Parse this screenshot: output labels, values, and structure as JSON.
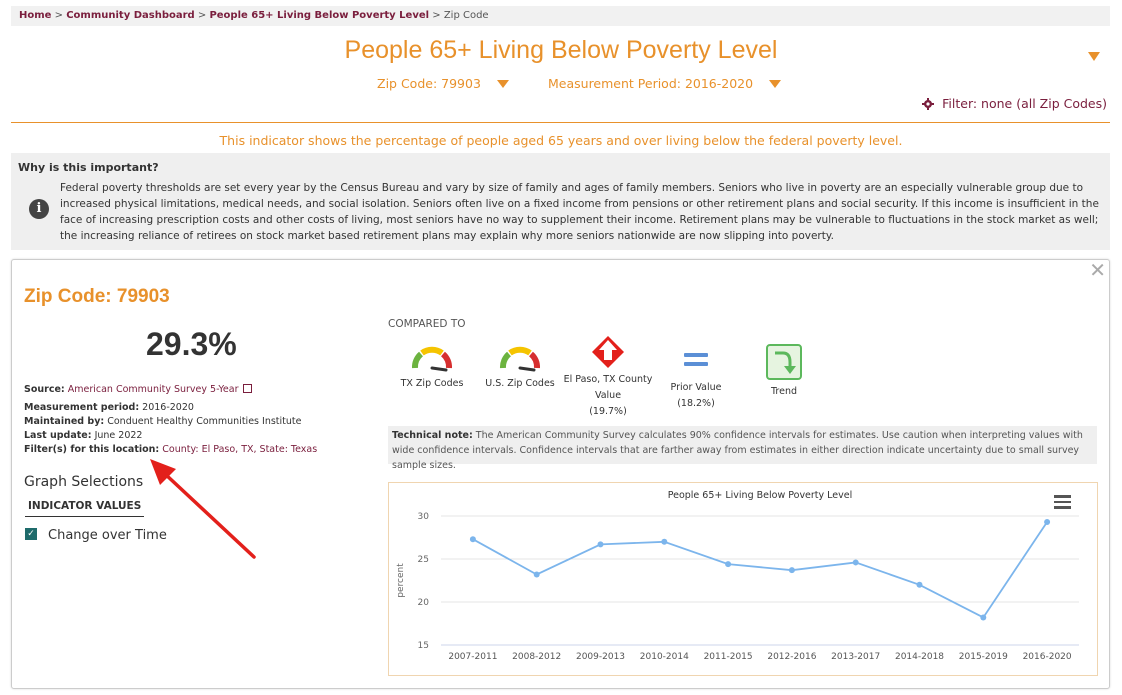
{
  "breadcrumb": {
    "home": "Home",
    "sep1": " > ",
    "dashboard": "Community Dashboard",
    "sep2": " > ",
    "indicator": "People 65+ Living Below Poverty Level",
    "sep3": " > ",
    "current": "Zip Code"
  },
  "header": {
    "title": "People 65+ Living Below Poverty Level",
    "zip_selector": "Zip Code: 79903",
    "period_selector": "Measurement Period: 2016-2020",
    "filter": "Filter: none (all Zip Codes)"
  },
  "intro": "This indicator shows the percentage of people aged 65 years and over living below the federal poverty level.",
  "why": {
    "title": "Why is this important?",
    "body": "Federal poverty thresholds are set every year by the Census Bureau and vary by size of family and ages of family members. Seniors who live in poverty are an especially vulnerable group due to increased physical limitations, medical needs, and social isolation. Seniors often live on a fixed income from pensions or other retirement plans and social security. If this income is insufficient in the face of increasing prescription costs and other costs of living, most seniors have no way to supplement their income. Retirement plans may be vulnerable to fluctuations in the stock market as well; the increasing reliance of retirees on stock market based retirement plans may explain why more seniors nationwide are now slipping into poverty."
  },
  "detail": {
    "zip_title": "Zip Code: 79903",
    "value": "29.3%",
    "source_label": "Source:",
    "source": "American Community Survey 5-Year",
    "period_label": "Measurement period:",
    "period": "2016-2020",
    "maintained_label": "Maintained by:",
    "maintained": "Conduent Healthy Communities Institute",
    "update_label": "Last update:",
    "update": "June 2022",
    "filters_label": "Filter(s) for this location:",
    "filters": "County: El Paso, TX, State: Texas"
  },
  "graph_selections": {
    "title": "Graph Selections",
    "tab": "INDICATOR VALUES",
    "option": "Change over Time"
  },
  "compared": {
    "title": "COMPARED TO",
    "items": [
      {
        "label": "TX Zip Codes",
        "sub": "",
        "icon": "gauge-icon"
      },
      {
        "label": "U.S. Zip Codes",
        "sub": "",
        "icon": "gauge-icon"
      },
      {
        "label": "El Paso, TX County Value",
        "sub": "(19.7%)",
        "icon": "red-up-arrow-icon"
      },
      {
        "label": "Prior Value",
        "sub": "(18.2%)",
        "icon": "equal-icon"
      },
      {
        "label": "Trend",
        "sub": "",
        "icon": "trend-down-icon"
      }
    ]
  },
  "tech_note": {
    "label": "Technical note:",
    "text": "The American Community Survey calculates 90% confidence intervals for estimates. Use caution when interpreting values with wide confidence intervals. Confidence intervals that are farther away from estimates in either direction indicate uncertainty due to small survey sample sizes."
  },
  "colors": {
    "accent": "#e8912b",
    "link": "#7a1e3d",
    "series": "#7cb5ec"
  },
  "chart_data": {
    "type": "line",
    "title": "People 65+ Living Below Poverty Level",
    "ylabel": "percent",
    "xlabel": "",
    "categories": [
      "2007-2011",
      "2008-2012",
      "2009-2013",
      "2010-2014",
      "2011-2015",
      "2012-2016",
      "2013-2017",
      "2014-2018",
      "2015-2019",
      "2016-2020"
    ],
    "values": [
      27.3,
      23.2,
      26.7,
      27.0,
      24.4,
      23.7,
      24.6,
      22.0,
      18.2,
      29.3
    ],
    "ylim": [
      15,
      30
    ],
    "yticks": [
      15,
      20,
      25,
      30
    ],
    "grid": true
  }
}
